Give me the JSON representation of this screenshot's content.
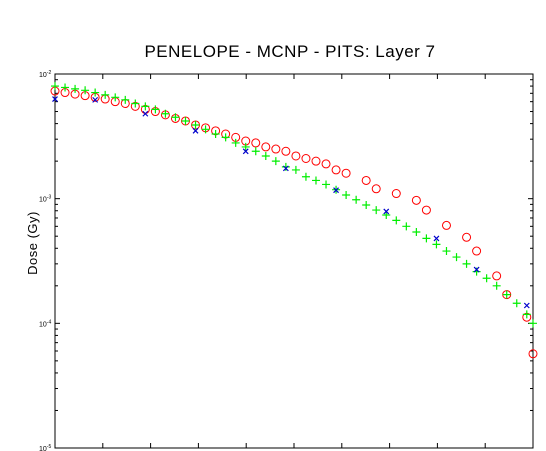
{
  "chart_data": {
    "type": "scatter",
    "title": "PENELOPE - MCNP - PITS: Layer 7",
    "xlabel": "",
    "ylabel": "Dose (Gy)",
    "y_scale": "log",
    "ylim": [
      1e-05,
      0.01
    ],
    "xlim": [
      0,
      10
    ],
    "y_ticks": [
      {
        "value": 0.01,
        "base": "10",
        "exp": "-2"
      },
      {
        "value": 0.001,
        "base": "10",
        "exp": "-3"
      },
      {
        "value": 0.0001,
        "base": "10",
        "exp": "-4"
      },
      {
        "value": 1e-05,
        "base": "10",
        "exp": "-5"
      }
    ],
    "x_tick_labels_shown": false,
    "grid": false,
    "legend": "none",
    "series": [
      {
        "marker": "circle",
        "color": "#ff0000",
        "x": [
          0.0,
          0.21,
          0.42,
          0.63,
          0.84,
          1.05,
          1.26,
          1.47,
          1.68,
          1.89,
          2.1,
          2.31,
          2.52,
          2.73,
          2.94,
          3.15,
          3.36,
          3.57,
          3.78,
          3.99,
          4.2,
          4.41,
          4.62,
          4.83,
          5.04,
          5.25,
          5.46,
          5.67,
          5.88,
          6.09,
          6.51,
          6.72,
          7.14,
          7.56,
          7.77,
          8.19,
          8.61,
          8.82,
          9.24,
          9.45,
          9.87,
          10.0
        ],
        "y": [
          0.0073,
          0.0071,
          0.0069,
          0.0067,
          0.0065,
          0.0063,
          0.006,
          0.0058,
          0.0055,
          0.0052,
          0.005,
          0.0047,
          0.0044,
          0.0042,
          0.0039,
          0.0037,
          0.0035,
          0.0033,
          0.0031,
          0.0029,
          0.0028,
          0.0026,
          0.0025,
          0.0024,
          0.0022,
          0.0021,
          0.002,
          0.0019,
          0.0017,
          0.0016,
          0.0014,
          0.0012,
          0.0011,
          0.00097,
          0.00081,
          0.00061,
          0.00049,
          0.00038,
          0.00024,
          0.00017,
          0.000112,
          5.7e-05
        ]
      },
      {
        "marker": "plus",
        "color": "#00ee00",
        "x": [
          0.0,
          0.21,
          0.42,
          0.63,
          0.84,
          1.05,
          1.26,
          1.47,
          1.68,
          1.89,
          2.1,
          2.31,
          2.52,
          2.73,
          2.94,
          3.15,
          3.36,
          3.57,
          3.78,
          3.99,
          4.2,
          4.41,
          4.62,
          4.83,
          5.04,
          5.25,
          5.46,
          5.67,
          5.88,
          6.09,
          6.3,
          6.51,
          6.72,
          6.93,
          7.14,
          7.35,
          7.56,
          7.77,
          7.98,
          8.19,
          8.4,
          8.61,
          8.82,
          9.03,
          9.24,
          9.45,
          9.66,
          9.87,
          10.0
        ],
        "y": [
          0.008,
          0.0078,
          0.0076,
          0.0074,
          0.0071,
          0.0068,
          0.0065,
          0.0062,
          0.0058,
          0.0055,
          0.0052,
          0.0048,
          0.0045,
          0.0042,
          0.0039,
          0.0036,
          0.0033,
          0.0031,
          0.0028,
          0.0026,
          0.0024,
          0.0022,
          0.002,
          0.0018,
          0.0017,
          0.0015,
          0.0014,
          0.0013,
          0.00118,
          0.00107,
          0.00098,
          0.00089,
          0.00081,
          0.00074,
          0.00067,
          0.0006,
          0.00054,
          0.00048,
          0.00043,
          0.00038,
          0.00034,
          0.0003,
          0.00026,
          0.00023,
          0.0002,
          0.00017,
          0.000145,
          0.000118,
          0.0001
        ]
      },
      {
        "marker": "x",
        "color": "#0000cc",
        "x": [
          0.0,
          0.84,
          1.89,
          2.94,
          3.99,
          4.83,
          5.88,
          6.93,
          7.98,
          8.82,
          9.87
        ],
        "y": [
          0.0063,
          0.0062,
          0.0048,
          0.0035,
          0.0024,
          0.00175,
          0.00117,
          0.00079,
          0.00048,
          0.00027,
          0.000139
        ]
      }
    ]
  }
}
